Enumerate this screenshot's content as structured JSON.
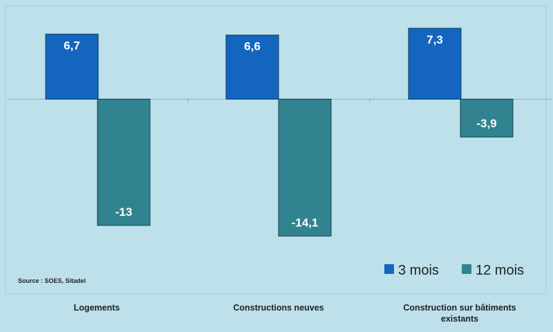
{
  "chart_data": {
    "type": "bar",
    "title": "",
    "xlabel": "",
    "ylabel": "",
    "categories": [
      [
        "Logements"
      ],
      [
        "Constructions neuves"
      ],
      [
        "Construction sur bâtiments",
        "existants"
      ]
    ],
    "series": [
      {
        "name": "3 mois",
        "values": [
          6.7,
          6.6,
          7.3
        ],
        "labels": [
          "6,7",
          "6,6",
          "7,3"
        ],
        "color": "#1465c0"
      },
      {
        "name": "12 mois",
        "values": [
          -13,
          -14.1,
          -3.9
        ],
        "labels": [
          "-13",
          "-14,1",
          "-3,9"
        ],
        "color": "#31838f"
      }
    ],
    "ylim": [
      -16,
      8.5
    ],
    "grid": false,
    "legend_position": "bottom-right",
    "source": "Source : SOES,  Sitadel"
  },
  "colors": {
    "background": "#bde0ea",
    "axis": "#8fb2bd"
  }
}
